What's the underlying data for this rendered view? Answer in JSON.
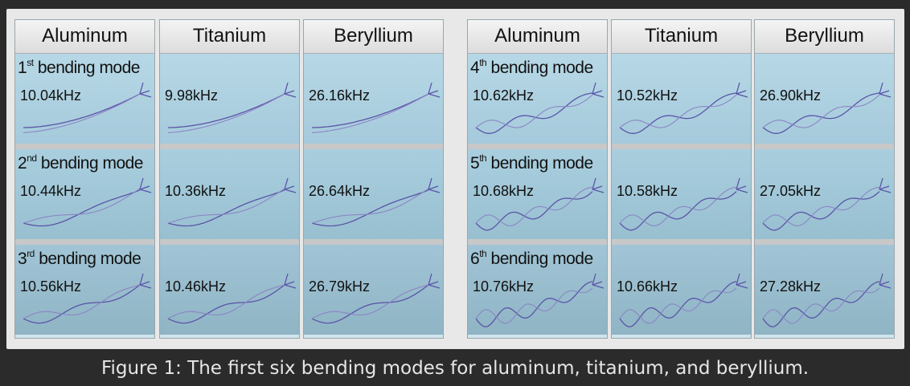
{
  "groups": [
    {
      "headers": [
        "Aluminum",
        "Titanium",
        "Beryllium"
      ],
      "modes": [
        {
          "num": "1",
          "suffix": "st",
          "label": " bending mode",
          "freqs": [
            "10.04kHz",
            "9.98kHz",
            "26.16kHz"
          ]
        },
        {
          "num": "2",
          "suffix": "nd",
          "label": " bending mode",
          "freqs": [
            "10.44kHz",
            "10.36kHz",
            "26.64kHz"
          ]
        },
        {
          "num": "3",
          "suffix": "rd",
          "label": " bending mode",
          "freqs": [
            "10.56kHz",
            "10.46kHz",
            "26.79kHz"
          ]
        }
      ]
    },
    {
      "headers": [
        "Aluminum",
        "Titanium",
        "Beryllium"
      ],
      "modes": [
        {
          "num": "4",
          "suffix": "th",
          "label": " bending mode",
          "freqs": [
            "10.62kHz",
            "10.52kHz",
            "26.90kHz"
          ]
        },
        {
          "num": "5",
          "suffix": "th",
          "label": " bending mode",
          "freqs": [
            "10.68kHz",
            "10.58kHz",
            "27.05kHz"
          ]
        },
        {
          "num": "6",
          "suffix": "th",
          "label": " bending mode",
          "freqs": [
            "10.76kHz",
            "10.66kHz",
            "27.28kHz"
          ]
        }
      ]
    }
  ],
  "caption": "Figure 1: The first six bending modes for aluminum, titanium, and beryllium.",
  "colors": {
    "wave": "#5a54a8",
    "wave_light": "#8a86c4"
  }
}
